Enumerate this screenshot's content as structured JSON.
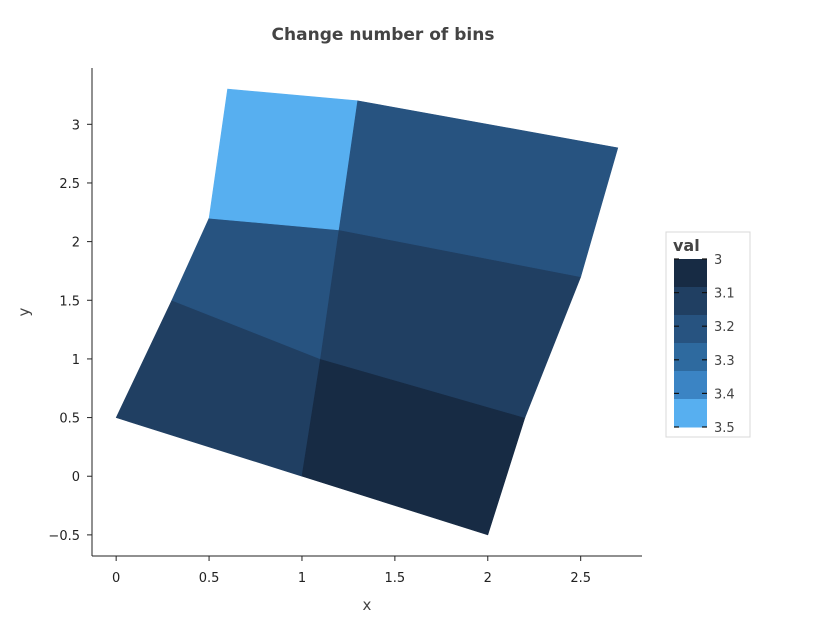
{
  "chart_data": {
    "type": "heatmap",
    "title": "Change number of bins",
    "xlabel": "x",
    "ylabel": "y",
    "xlim": [
      -0.13,
      2.83
    ],
    "ylim": [
      -0.68,
      3.48
    ],
    "xticks": [
      0,
      0.5,
      1,
      1.5,
      2,
      2.5
    ],
    "xtick_labels": [
      "0",
      "0.5",
      "1",
      "1.5",
      "2",
      "2.5"
    ],
    "yticks": [
      -0.5,
      0,
      0.5,
      1,
      1.5,
      2,
      2.5,
      3
    ],
    "ytick_labels": [
      "−0.5",
      "0",
      "0.5",
      "1",
      "1.5",
      "2",
      "2.5",
      "3"
    ],
    "grid_x": [
      [
        0,
        0.3,
        0.5,
        0.6
      ],
      [
        1,
        1.1,
        1.2,
        1.3
      ],
      [
        2,
        2.2,
        2.5,
        2.7
      ]
    ],
    "grid_y": [
      [
        0.5,
        1.5,
        2.2,
        3.3
      ],
      [
        0,
        1,
        2.1,
        3.2
      ],
      [
        -0.5,
        0.5,
        1.7,
        2.8
      ]
    ],
    "values": [
      [
        3.1,
        3.2,
        3.5
      ],
      [
        3.0,
        3.1,
        3.2
      ]
    ],
    "colorscale": [
      [
        0.0,
        "#172b44"
      ],
      [
        0.167,
        "#172b44"
      ],
      [
        0.167,
        "#203f62"
      ],
      [
        0.333,
        "#203f62"
      ],
      [
        0.333,
        "#275380"
      ],
      [
        0.5,
        "#275380"
      ],
      [
        0.5,
        "#2e6a9f"
      ],
      [
        0.667,
        "#2e6a9f"
      ],
      [
        0.667,
        "#3b84c4"
      ],
      [
        0.833,
        "#3b84c4"
      ],
      [
        0.833,
        "#57aff0"
      ],
      [
        1.0,
        "#57aff0"
      ]
    ],
    "legend": {
      "title": "val",
      "min": 3,
      "max": 3.5,
      "ticks": [
        3,
        3.1,
        3.2,
        3.3,
        3.4,
        3.5
      ],
      "tick_labels": [
        "3",
        "3.1",
        "3.2",
        "3.3",
        "3.4",
        "3.5"
      ],
      "placement": "right"
    }
  }
}
